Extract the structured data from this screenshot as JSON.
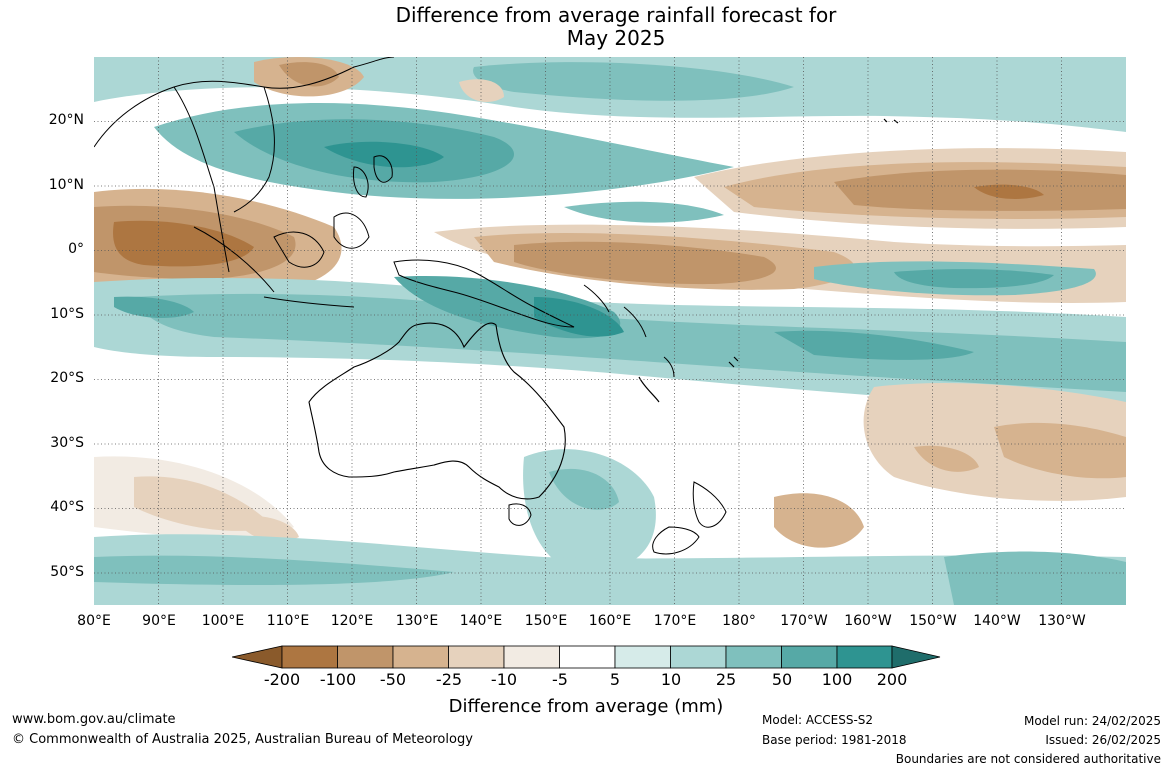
{
  "title": {
    "line1": "Difference from average rainfall forecast for",
    "line2": "May 2025"
  },
  "map": {
    "lat_labels": [
      "20°N",
      "10°N",
      "0°",
      "10°S",
      "20°S",
      "30°S",
      "40°S",
      "50°S"
    ],
    "lon_labels": [
      "80°E",
      "90°E",
      "100°E",
      "110°E",
      "120°E",
      "130°E",
      "140°E",
      "150°E",
      "160°E",
      "170°E",
      "180°",
      "170°W",
      "160°W",
      "150°W",
      "140°W",
      "130°W"
    ],
    "grid": true
  },
  "legend": {
    "title": "Difference from average (mm)",
    "ticks": [
      "-200",
      "-100",
      "-50",
      "-25",
      "-10",
      "-5",
      "5",
      "10",
      "25",
      "50",
      "100",
      "200"
    ],
    "colors": [
      "#8a5a2b",
      "#ad7641",
      "#c0956a",
      "#d6b38f",
      "#e6d2bd",
      "#f2ebe3",
      "#ffffff",
      "#d6ebe9",
      "#acd7d5",
      "#7fc0bd",
      "#56a9a6",
      "#2e9491",
      "#1f6d6b"
    ]
  },
  "footer": {
    "website": "www.bom.gov.au/climate",
    "copyright": "© Commonwealth of Australia 2025, Australian Bureau of Meteorology",
    "model": "Model: ACCESS-S2",
    "base_period": "Base period: 1981-2018",
    "model_run": "Model run: 24/02/2025",
    "issued": "Issued: 26/02/2025",
    "boundaries": "Boundaries are not considered authoritative"
  }
}
